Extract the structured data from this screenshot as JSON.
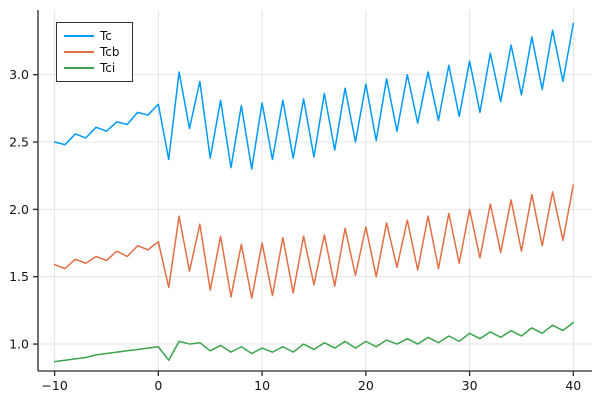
{
  "chart_data": {
    "type": "line",
    "title": "",
    "xlabel": "",
    "ylabel": "",
    "grid": true,
    "legend_position": "top-left",
    "axis_color": "#2a2a2a",
    "grid_color": "#e4e4e4",
    "background_color": "#ffffff",
    "x_ticks": [
      -10,
      0,
      10,
      20,
      30,
      40
    ],
    "x_tick_labels": [
      "−10",
      "0",
      "10",
      "20",
      "30",
      "40"
    ],
    "y_ticks": [
      1.0,
      1.5,
      2.0,
      2.5,
      3.0
    ],
    "y_tick_labels": [
      "1.0",
      "1.5",
      "2.0",
      "2.5",
      "3.0"
    ],
    "xlim": [
      -11.6,
      41.8
    ],
    "ylim": [
      0.8,
      3.48
    ],
    "x": [
      -10,
      -9,
      -8,
      -7,
      -6,
      -5,
      -4,
      -3,
      -2,
      -1,
      0,
      1,
      2,
      3,
      4,
      5,
      6,
      7,
      8,
      9,
      10,
      11,
      12,
      13,
      14,
      15,
      16,
      17,
      18,
      19,
      20,
      21,
      22,
      23,
      24,
      25,
      26,
      27,
      28,
      29,
      30,
      31,
      32,
      33,
      34,
      35,
      36,
      37,
      38,
      39,
      40
    ],
    "series": [
      {
        "name": "Tc",
        "color": "#009af9",
        "values": [
          2.5,
          2.48,
          2.56,
          2.53,
          2.61,
          2.58,
          2.65,
          2.63,
          2.72,
          2.7,
          2.78,
          2.37,
          3.02,
          2.6,
          2.95,
          2.38,
          2.81,
          2.31,
          2.77,
          2.3,
          2.79,
          2.37,
          2.81,
          2.38,
          2.82,
          2.39,
          2.86,
          2.44,
          2.9,
          2.5,
          2.93,
          2.51,
          2.97,
          2.58,
          3.0,
          2.64,
          3.02,
          2.66,
          3.07,
          2.69,
          3.1,
          2.72,
          3.16,
          2.8,
          3.22,
          2.85,
          3.28,
          2.89,
          3.33,
          2.95,
          3.38
        ]
      },
      {
        "name": "Tcb",
        "color": "#e26f46",
        "values": [
          1.59,
          1.56,
          1.63,
          1.6,
          1.65,
          1.62,
          1.69,
          1.65,
          1.73,
          1.7,
          1.76,
          1.42,
          1.95,
          1.54,
          1.89,
          1.4,
          1.8,
          1.35,
          1.74,
          1.34,
          1.75,
          1.36,
          1.79,
          1.38,
          1.8,
          1.44,
          1.81,
          1.43,
          1.86,
          1.51,
          1.87,
          1.5,
          1.9,
          1.57,
          1.92,
          1.55,
          1.95,
          1.56,
          1.97,
          1.6,
          2.0,
          1.64,
          2.04,
          1.68,
          2.07,
          1.69,
          2.11,
          1.73,
          2.13,
          1.77,
          2.18
        ]
      },
      {
        "name": "Tci",
        "color": "#3da44d",
        "values": [
          0.87,
          0.88,
          0.89,
          0.9,
          0.92,
          0.93,
          0.94,
          0.95,
          0.96,
          0.97,
          0.98,
          0.88,
          1.02,
          1.0,
          1.01,
          0.95,
          0.99,
          0.94,
          0.98,
          0.93,
          0.97,
          0.94,
          0.98,
          0.94,
          1.0,
          0.96,
          1.01,
          0.97,
          1.02,
          0.97,
          1.02,
          0.98,
          1.03,
          1.0,
          1.04,
          1.0,
          1.05,
          1.01,
          1.06,
          1.02,
          1.08,
          1.04,
          1.09,
          1.05,
          1.1,
          1.06,
          1.12,
          1.08,
          1.14,
          1.1,
          1.16
        ]
      }
    ]
  }
}
